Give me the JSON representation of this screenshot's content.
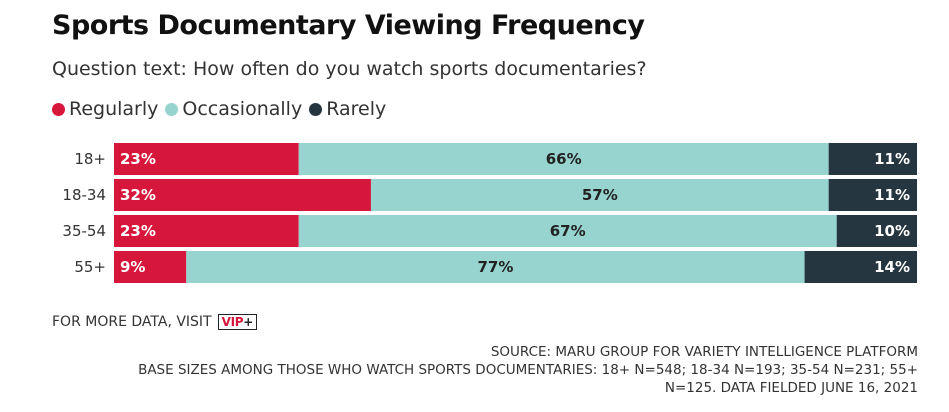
{
  "title": "Sports Documentary Viewing Frequency",
  "subtitle": "Question text: How often do you watch sports documentaries?",
  "colors": {
    "regularly": "#d6173b",
    "occasionally": "#97d4d0",
    "rarely": "#253640"
  },
  "chart_data": {
    "type": "bar",
    "orientation": "horizontal",
    "stacked": true,
    "normalized_to_percent": true,
    "categories": [
      "18+",
      "18-34",
      "35-54",
      "55+"
    ],
    "series": [
      {
        "name": "Regularly",
        "values": [
          23,
          32,
          23,
          9
        ]
      },
      {
        "name": "Occasionally",
        "values": [
          66,
          57,
          67,
          77
        ]
      },
      {
        "name": "Rarely",
        "values": [
          11,
          11,
          10,
          14
        ]
      }
    ],
    "data_labels": [
      [
        "23%",
        "66%",
        "11%"
      ],
      [
        "32%",
        "57%",
        "11%"
      ],
      [
        "23%",
        "67%",
        "10%"
      ],
      [
        "9%",
        "77%",
        "14%"
      ]
    ],
    "legend_position": "top-left",
    "grid": false
  },
  "footer": {
    "more_text": "FOR MORE DATA, VISIT",
    "vip_label": "VIP",
    "vip_plus": "+",
    "source_line1": "SOURCE: MARU GROUP FOR VARIETY INTELLIGENCE PLATFORM",
    "source_line2": "BASE SIZES AMONG THOSE WHO WATCH SPORTS DOCUMENTARIES: 18+ N=548; 18-34 N=193; 35-54 N=231; 55+",
    "source_line3": "N=125. DATA FIELDED JUNE 16, 2021"
  }
}
